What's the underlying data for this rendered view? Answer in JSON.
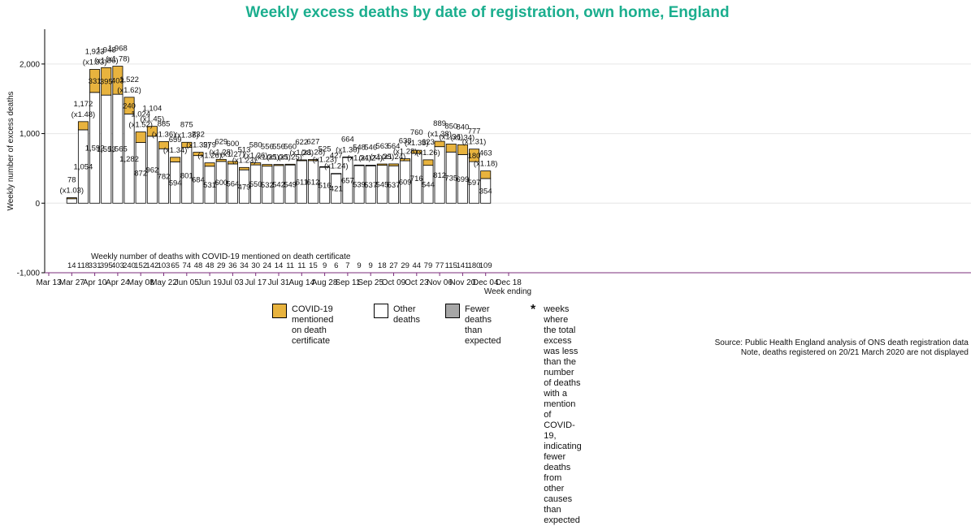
{
  "colors": {
    "covid": "#E8B33E",
    "other": "#FFFFFF",
    "fewer": "#A6A6A6",
    "title": "#1BAE8E",
    "purple": "#7B2C7B"
  },
  "chart_data": {
    "type": "bar",
    "title": "Weekly excess deaths by date of registration, own home, England",
    "xlabel": "Week ending",
    "ylabel": "Weekly number of excess deaths",
    "ylim": [
      -1000,
      2500
    ],
    "yticks": [
      "2,000",
      "1,000",
      "0",
      "-1,000"
    ],
    "ytick_values": [
      2000,
      1000,
      0,
      -1000
    ],
    "xtick_labels": [
      "Mar 13",
      "Mar 27",
      "Apr 10",
      "Apr 24",
      "May 08",
      "May 22",
      "Jun 05",
      "Jun 19",
      "Jul 03",
      "Jul 17",
      "Jul 31",
      "Aug 14",
      "Aug 28",
      "Sep 11",
      "Sep 25",
      "Oct 09",
      "Oct 23",
      "Nov 06",
      "Nov 20",
      "Dec 04",
      "Dec 18"
    ],
    "weeks": [
      "Mar 27",
      "Apr 03",
      "Apr 10",
      "Apr 17",
      "Apr 24",
      "May 01",
      "May 08",
      "May 15",
      "May 22",
      "May 29",
      "Jun 05",
      "Jun 12",
      "Jun 19",
      "Jun 26",
      "Jul 03",
      "Jul 10",
      "Jul 17",
      "Jul 24",
      "Jul 31",
      "Aug 07",
      "Aug 14",
      "Aug 21",
      "Aug 28",
      "Sep 04",
      "Sep 11",
      "Sep 18",
      "Sep 25",
      "Oct 02",
      "Oct 09",
      "Oct 16",
      "Oct 23",
      "Oct 30",
      "Nov 06",
      "Nov 13",
      "Nov 20",
      "Nov 27",
      "Dec 04"
    ],
    "series": [
      {
        "name": "COVID-19 mentioned on death certificate",
        "values": [
          14,
          118,
          331,
          395,
          403,
          240,
          152,
          142,
          103,
          65,
          74,
          48,
          48,
          29,
          36,
          34,
          30,
          24,
          14,
          11,
          11,
          15,
          9,
          6,
          7,
          9,
          9,
          18,
          27,
          29,
          44,
          79,
          77,
          115,
          141,
          180,
          109
        ]
      },
      {
        "name": "Other deaths",
        "values": [
          64,
          1054,
          1592,
          1553,
          1565,
          1282,
          872,
          962,
          782,
          594,
          801,
          684,
          531,
          600,
          564,
          479,
          550,
          532,
          542,
          549,
          611,
          612,
          516,
          421,
          657,
          539,
          537,
          545,
          537,
          609,
          716,
          544,
          812,
          735,
          699,
          597,
          354
        ]
      }
    ],
    "totals": [
      "78",
      "1,172",
      "1,923",
      "1,948",
      "1,968",
      "1,522",
      "1,024",
      "1,104",
      "885",
      "659",
      "875",
      "732",
      "579",
      "629",
      "600",
      "513",
      "580",
      "556",
      "556",
      "560",
      "622",
      "627",
      "525",
      "427",
      "664",
      "548",
      "546",
      "563",
      "564",
      "638",
      "760",
      "623",
      "889",
      "850",
      "840",
      "777",
      "463"
    ],
    "ratios": [
      "(x1.03)",
      "(x1.48)",
      "(x1.93)",
      "(x1.86)",
      "(x1.78)",
      "(x1.62)",
      "(x1.52)",
      "(x1.45)",
      "(x1.36)",
      "(x1.34)",
      "(x1.38)",
      "(x1.32)",
      "(x1.26)",
      "(x1.28)",
      "(x1.27)",
      "(x1.23)",
      "(x1.26)",
      "(x1.25)",
      "(x1.25)",
      "(x1.25)",
      "(x1.28)",
      "(x1.28)",
      "(x1.23)",
      "(x1.24)",
      "(x1.30)",
      "(x1.24)",
      "(x1.24)",
      "(x1.25)",
      "(x1.24)",
      "(x1.28)",
      "(x1.33)",
      "(x1.26)",
      "(x1.38)",
      "(x1.36)",
      "(x1.34)",
      "(x1.31)",
      "(x1.18)"
    ],
    "covid_labels": [
      "",
      "",
      "331",
      "395",
      "403",
      "240",
      "",
      "",
      "",
      "",
      "",
      "",
      "",
      "",
      "",
      "",
      "",
      "",
      "",
      "",
      "",
      "",
      "",
      "",
      "",
      "",
      "",
      "",
      "",
      "",
      "",
      "",
      "",
      "",
      "",
      "180",
      ""
    ],
    "other_labels": [
      "",
      "1,054",
      "1,592",
      "1,553",
      "1,565",
      "1,282",
      "872",
      "962",
      "782",
      "594",
      "801",
      "684",
      "531",
      "600",
      "564",
      "479",
      "550",
      "532",
      "542",
      "549",
      "611",
      "612",
      "516",
      "421",
      "657",
      "539",
      "537",
      "545",
      "537",
      "609",
      "716",
      "544",
      "812",
      "735",
      "699",
      "597",
      "354"
    ],
    "covid_row_title": "Weekly number of deaths with COVID-19 mentioned on death certificate",
    "covid_row": [
      "14",
      "118",
      "331",
      "395",
      "403",
      "240",
      "152",
      "142",
      "103",
      "65",
      "74",
      "48",
      "48",
      "29",
      "36",
      "34",
      "30",
      "24",
      "14",
      "11",
      "11",
      "15",
      "9",
      "6",
      "7",
      "9",
      "9",
      "18",
      "27",
      "29",
      "44",
      "79",
      "77",
      "115",
      "141",
      "180",
      "109"
    ],
    "grid": true,
    "legend_position": "bottom"
  },
  "legend": {
    "covid": "COVID-19 mentioned\non death certificate",
    "other": "Other deaths",
    "fewer": "Fewer deaths\nthan expected",
    "star_symbol": "*",
    "star_note": "weeks where the total excess was less than the number\nof deaths with a mention of COVID-19, indicating fewer\ndeaths from other causes than expected"
  },
  "source": {
    "line1": "Source: Public Health England analysis of ONS death registration data",
    "line2": "Note, deaths registered on 20/21 March 2020 are not displayed"
  }
}
